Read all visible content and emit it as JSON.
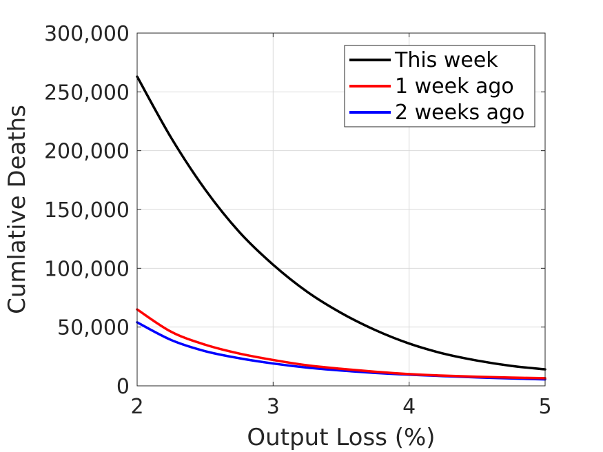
{
  "chart_data": {
    "type": "line",
    "xlabel": "Output Loss (%)",
    "ylabel": "Cumlative Deaths",
    "xlim": [
      2,
      5
    ],
    "ylim": [
      0,
      300000
    ],
    "xticks": [
      2,
      3,
      4,
      5
    ],
    "yticks": [
      0,
      50000,
      100000,
      150000,
      200000,
      250000,
      300000
    ],
    "xtick_labels": [
      "2",
      "3",
      "4",
      "5"
    ],
    "ytick_labels": [
      "0",
      "50,000",
      "100,000",
      "150,000",
      "200,000",
      "250,000",
      "300,000"
    ],
    "grid": true,
    "legend_position": "top-right",
    "x": [
      2.0,
      2.25,
      2.5,
      2.75,
      3.0,
      3.25,
      3.5,
      3.75,
      4.0,
      4.25,
      4.5,
      4.75,
      5.0
    ],
    "series": [
      {
        "name": "This week",
        "color": "#000000",
        "values": [
          263000,
          211000,
          167000,
          131000,
          103000,
          80000,
          62000,
          47500,
          36000,
          27500,
          21500,
          17000,
          14000
        ]
      },
      {
        "name": "1 week ago",
        "color": "#ff0000",
        "values": [
          65000,
          46000,
          35000,
          27500,
          22000,
          17500,
          14500,
          12000,
          10000,
          8700,
          7800,
          7000,
          6500
        ]
      },
      {
        "name": "2 weeks ago",
        "color": "#0000ff",
        "values": [
          54000,
          39000,
          29500,
          23500,
          19000,
          15500,
          13000,
          11000,
          9500,
          8300,
          7200,
          6300,
          5500
        ]
      }
    ]
  }
}
